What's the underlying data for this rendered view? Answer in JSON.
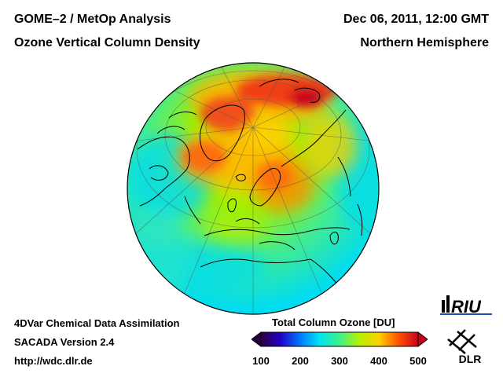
{
  "header": {
    "left_line1": "GOME–2 / MetOp Analysis",
    "left_line2": "Ozone Vertical Column Density",
    "right_line1": "Dec 06, 2011, 12:00 GMT",
    "right_line2": "Northern Hemisphere"
  },
  "footer": {
    "line1": "4DVar Chemical Data Assimilation",
    "line2": "SACADA Version 2.4",
    "line3": "http://wdc.dlr.de"
  },
  "colorbar": {
    "title": "Total Column Ozone [DU]",
    "min": 100,
    "max": 500,
    "ticks": [
      "100",
      "200",
      "300",
      "400",
      "500"
    ],
    "colors": [
      "#2b0040",
      "#2000c8",
      "#0078ff",
      "#00e6f0",
      "#3cf08c",
      "#b4f000",
      "#ffd200",
      "#ff5000",
      "#c8001e"
    ]
  },
  "logos": {
    "riu": "RIU",
    "dlr": "DLR"
  },
  "map": {
    "projection": "orthographic",
    "hemisphere": "Northern Hemisphere",
    "quantity": "Total Column Ozone",
    "units": "DU"
  }
}
